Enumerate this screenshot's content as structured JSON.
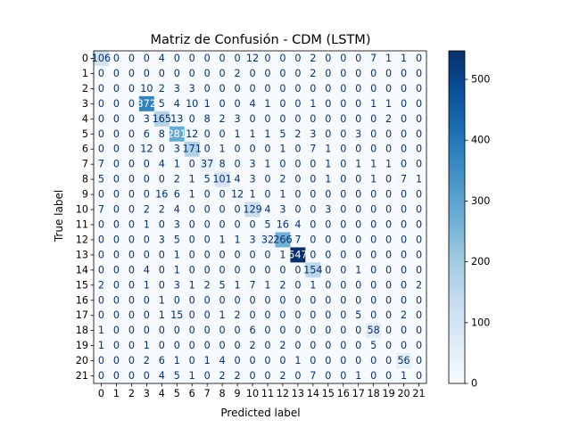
{
  "chart_data": {
    "type": "heatmap",
    "title": "Matriz de Confusión - CDM (LSTM)",
    "xlabel": "Predicted label",
    "ylabel": "True label",
    "labels": [
      "0",
      "1",
      "2",
      "3",
      "4",
      "5",
      "6",
      "7",
      "8",
      "9",
      "10",
      "11",
      "12",
      "13",
      "14",
      "15",
      "16",
      "17",
      "18",
      "19",
      "20",
      "21"
    ],
    "colormap": "Blues",
    "color_range": [
      0,
      547
    ],
    "colorbar_ticks": [
      0,
      100,
      200,
      300,
      400,
      500
    ],
    "colorbar_tick_labels": [
      "0",
      "100",
      "200",
      "300",
      "400",
      "500"
    ],
    "matrix": [
      [
        106,
        0,
        0,
        0,
        4,
        0,
        0,
        0,
        0,
        0,
        12,
        0,
        0,
        0,
        2,
        0,
        0,
        0,
        7,
        1,
        1,
        0
      ],
      [
        0,
        0,
        0,
        0,
        0,
        0,
        0,
        0,
        0,
        2,
        0,
        0,
        0,
        0,
        2,
        0,
        0,
        0,
        0,
        0,
        0,
        0
      ],
      [
        0,
        0,
        0,
        10,
        2,
        3,
        3,
        0,
        0,
        0,
        0,
        0,
        0,
        0,
        0,
        0,
        0,
        0,
        0,
        0,
        0,
        0
      ],
      [
        0,
        0,
        0,
        372,
        5,
        4,
        10,
        1,
        0,
        0,
        4,
        1,
        0,
        0,
        1,
        0,
        0,
        0,
        1,
        1,
        0,
        0
      ],
      [
        0,
        0,
        0,
        3,
        165,
        13,
        0,
        8,
        2,
        3,
        0,
        0,
        0,
        0,
        0,
        0,
        0,
        0,
        0,
        2,
        0,
        0
      ],
      [
        0,
        0,
        0,
        6,
        8,
        281,
        12,
        0,
        0,
        1,
        1,
        1,
        5,
        2,
        3,
        0,
        0,
        3,
        0,
        0,
        0,
        0
      ],
      [
        0,
        0,
        0,
        12,
        0,
        3,
        171,
        0,
        1,
        0,
        0,
        0,
        1,
        0,
        7,
        1,
        0,
        0,
        0,
        0,
        0,
        0
      ],
      [
        7,
        0,
        0,
        0,
        4,
        1,
        0,
        37,
        8,
        0,
        3,
        1,
        0,
        0,
        0,
        1,
        0,
        1,
        1,
        1,
        0,
        0
      ],
      [
        5,
        0,
        0,
        0,
        0,
        2,
        1,
        5,
        101,
        4,
        3,
        0,
        2,
        0,
        0,
        1,
        0,
        0,
        1,
        0,
        7,
        1
      ],
      [
        0,
        0,
        0,
        0,
        16,
        6,
        1,
        0,
        0,
        12,
        1,
        0,
        1,
        0,
        0,
        0,
        0,
        0,
        0,
        0,
        0,
        0
      ],
      [
        7,
        0,
        0,
        2,
        2,
        4,
        0,
        0,
        0,
        0,
        129,
        4,
        3,
        0,
        0,
        3,
        0,
        0,
        0,
        0,
        0,
        0
      ],
      [
        0,
        0,
        0,
        1,
        0,
        3,
        0,
        0,
        0,
        0,
        0,
        5,
        16,
        4,
        0,
        0,
        0,
        0,
        0,
        0,
        0,
        0
      ],
      [
        0,
        0,
        0,
        0,
        3,
        5,
        0,
        0,
        1,
        1,
        3,
        32,
        266,
        7,
        0,
        0,
        0,
        0,
        0,
        0,
        0,
        0
      ],
      [
        0,
        0,
        0,
        0,
        0,
        1,
        0,
        0,
        0,
        0,
        0,
        0,
        1,
        547,
        0,
        0,
        0,
        0,
        0,
        0,
        0,
        0
      ],
      [
        0,
        0,
        0,
        4,
        0,
        1,
        0,
        0,
        0,
        0,
        0,
        0,
        0,
        0,
        154,
        0,
        0,
        1,
        0,
        0,
        0,
        0
      ],
      [
        2,
        0,
        0,
        1,
        0,
        3,
        1,
        2,
        5,
        1,
        7,
        1,
        2,
        0,
        1,
        0,
        0,
        0,
        0,
        0,
        0,
        2
      ],
      [
        0,
        0,
        0,
        0,
        1,
        0,
        0,
        0,
        0,
        0,
        0,
        0,
        0,
        0,
        0,
        0,
        0,
        0,
        0,
        0,
        0,
        0
      ],
      [
        0,
        0,
        0,
        0,
        1,
        15,
        0,
        0,
        1,
        2,
        0,
        0,
        0,
        0,
        0,
        0,
        0,
        5,
        0,
        0,
        2,
        0
      ],
      [
        1,
        0,
        0,
        0,
        0,
        0,
        0,
        0,
        0,
        0,
        6,
        0,
        0,
        0,
        0,
        0,
        0,
        0,
        58,
        0,
        0,
        0
      ],
      [
        1,
        0,
        0,
        1,
        0,
        0,
        0,
        0,
        0,
        0,
        2,
        0,
        2,
        0,
        0,
        0,
        0,
        0,
        5,
        0,
        0,
        0
      ],
      [
        0,
        0,
        0,
        2,
        6,
        1,
        0,
        1,
        4,
        0,
        0,
        0,
        0,
        1,
        0,
        0,
        0,
        0,
        0,
        0,
        56,
        0
      ],
      [
        0,
        0,
        0,
        0,
        4,
        5,
        1,
        0,
        2,
        2,
        0,
        0,
        2,
        0,
        7,
        0,
        0,
        1,
        0,
        0,
        1,
        0
      ]
    ]
  }
}
